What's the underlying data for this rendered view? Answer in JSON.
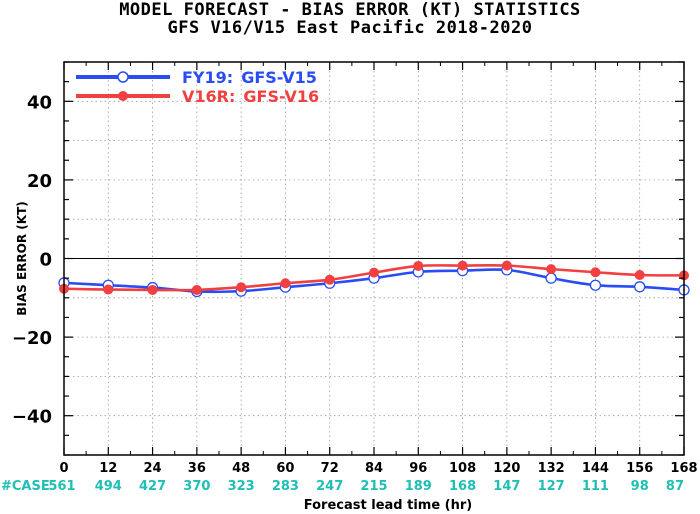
{
  "header": {
    "title": "MODEL FORECAST - BIAS ERROR (KT) STATISTICS",
    "subtitle": "GFS V16/V15 East Pacific 2018-2020"
  },
  "chart_data": {
    "type": "line",
    "ylabel": "BIAS ERROR (KT)",
    "xlabel": "Forecast lead time (hr)",
    "xlim": [
      0,
      168
    ],
    "ylim": [
      -50,
      50
    ],
    "x_ticks": [
      0,
      12,
      24,
      36,
      48,
      60,
      72,
      84,
      96,
      108,
      120,
      132,
      144,
      156,
      168
    ],
    "y_ticks": [
      -40,
      -20,
      0,
      20,
      40
    ],
    "grid": true,
    "legend_position": "top-left",
    "case_label": "#CASE",
    "case_counts": [
      561,
      494,
      427,
      370,
      323,
      283,
      247,
      215,
      189,
      168,
      147,
      127,
      111,
      98,
      87
    ],
    "case_color": "#1fbfb4",
    "series": [
      {
        "name": "FY19: GFS-V15",
        "prefix": "FY19:",
        "suffix": "GFS-V15",
        "color": "#2a4cf5",
        "marker": "open-circle",
        "x": [
          0,
          12,
          24,
          36,
          48,
          60,
          72,
          84,
          96,
          108,
          120,
          132,
          144,
          156,
          168
        ],
        "values": [
          -6.2,
          -6.8,
          -7.4,
          -8.4,
          -8.3,
          -7.3,
          -6.3,
          -5.0,
          -3.4,
          -3.1,
          -2.9,
          -5.0,
          -6.8,
          -7.2,
          -8.0
        ]
      },
      {
        "name": "V16R: GFS-V16",
        "prefix": "V16R:",
        "suffix": "GFS-V16",
        "color": "#f04040",
        "marker": "filled-circle",
        "x": [
          0,
          12,
          24,
          36,
          48,
          60,
          72,
          84,
          96,
          108,
          120,
          132,
          144,
          156,
          168
        ],
        "values": [
          -7.7,
          -7.9,
          -8.0,
          -8.0,
          -7.3,
          -6.3,
          -5.4,
          -3.6,
          -1.9,
          -1.8,
          -1.8,
          -2.7,
          -3.5,
          -4.2,
          -4.3
        ]
      }
    ]
  }
}
